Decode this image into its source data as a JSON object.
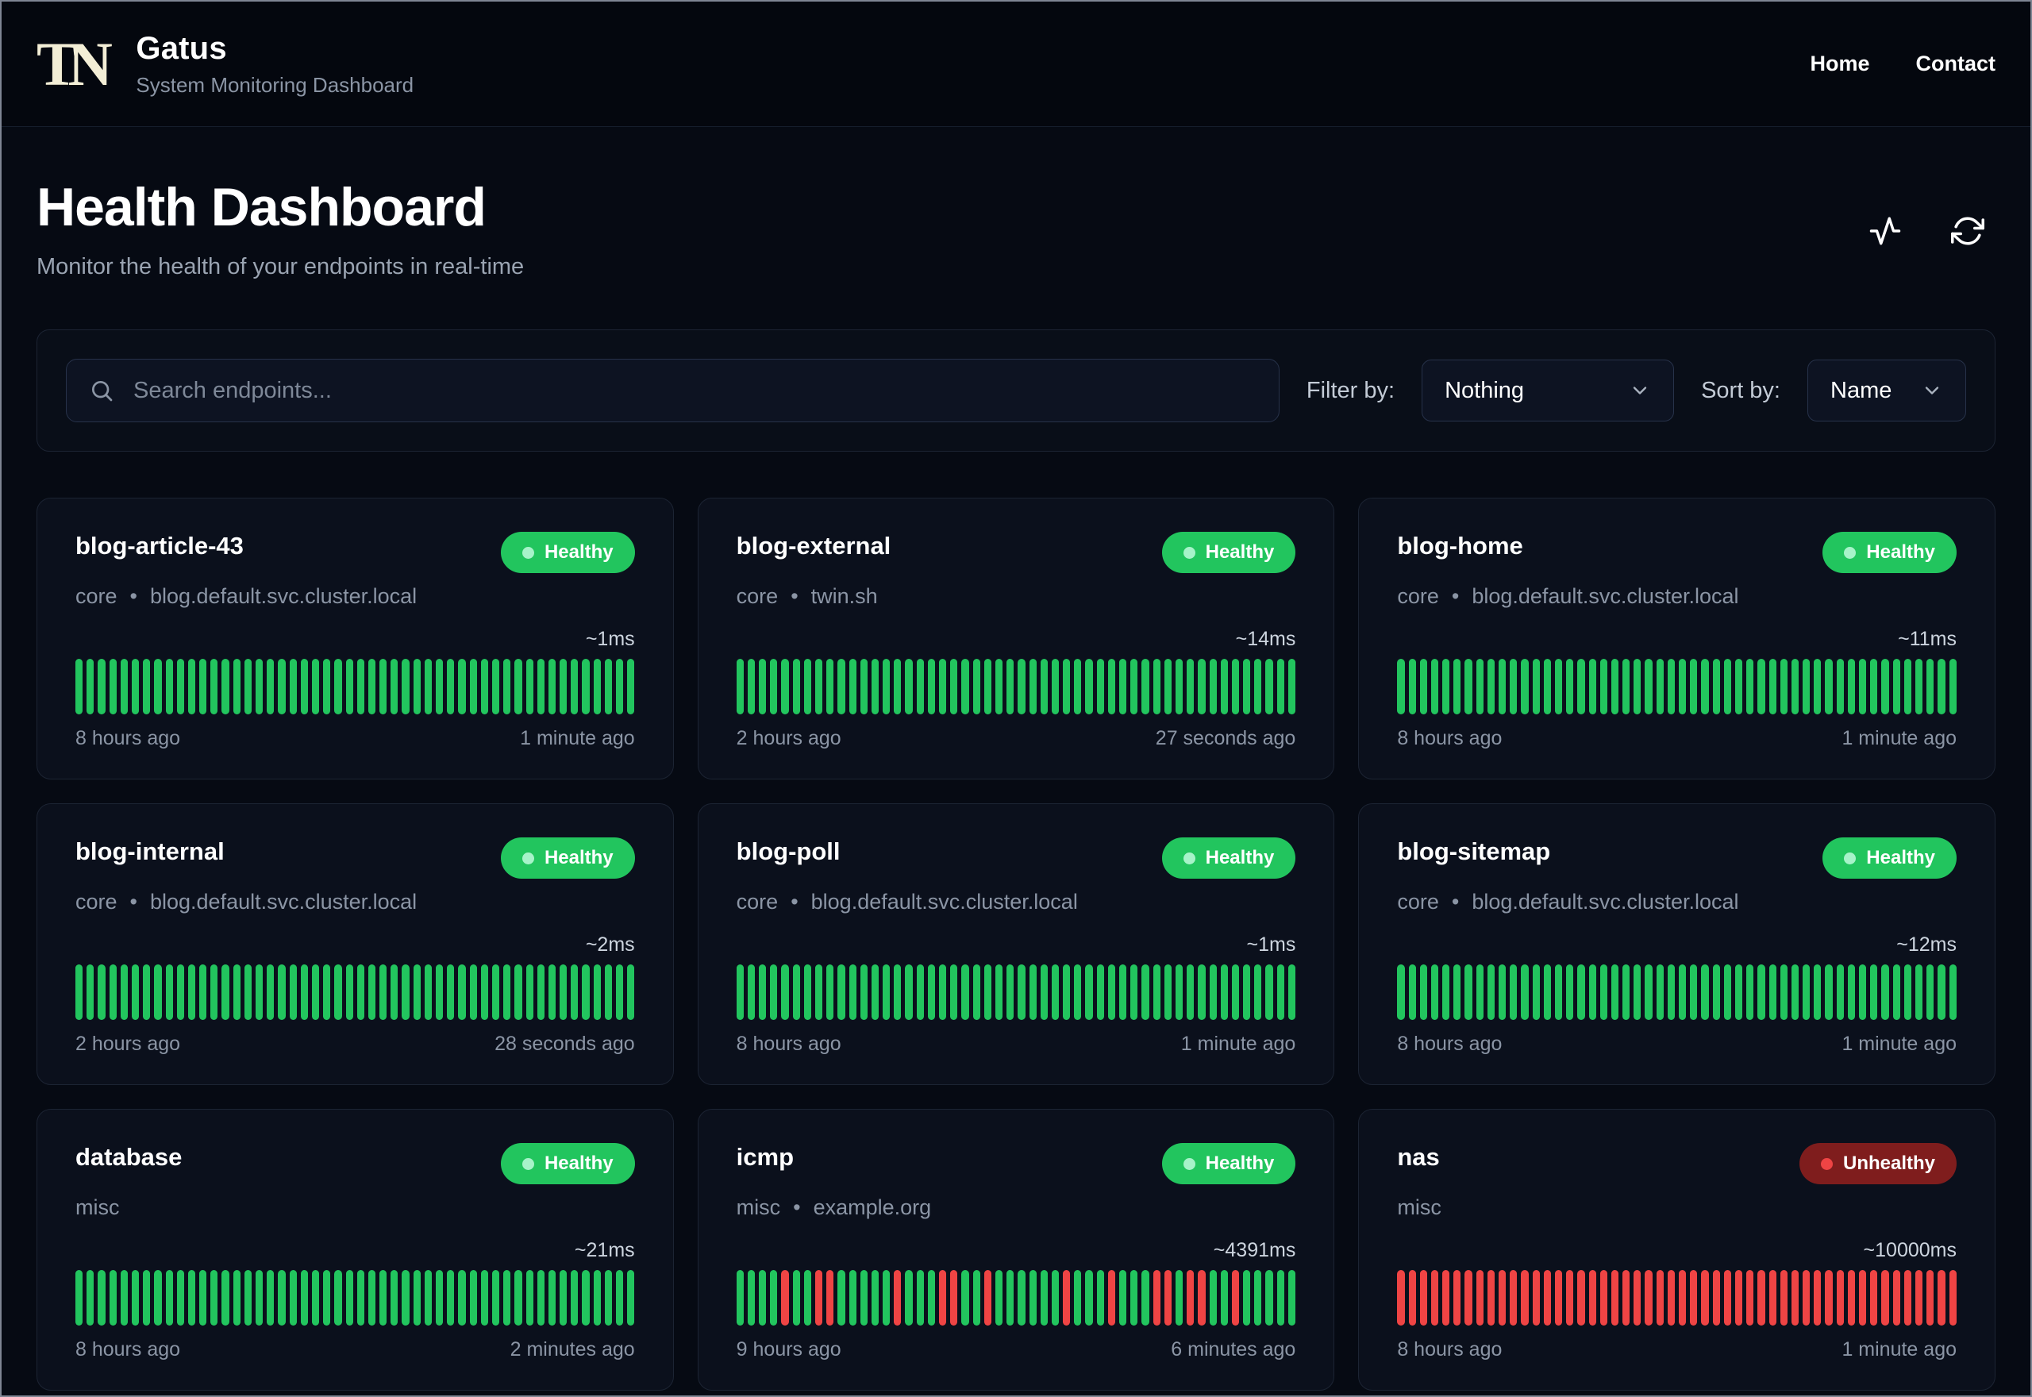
{
  "header": {
    "logo_text": "TN",
    "app_name": "Gatus",
    "app_subtitle": "System Monitoring Dashboard",
    "nav": [
      {
        "label": "Home"
      },
      {
        "label": "Contact"
      }
    ]
  },
  "hero": {
    "title": "Health Dashboard",
    "subtitle": "Monitor the health of your endpoints in real-time"
  },
  "toolbar": {
    "search_placeholder": "Search endpoints...",
    "search_value": "",
    "filter_label": "Filter by:",
    "filter_value": "Nothing",
    "sort_label": "Sort by:",
    "sort_value": "Name"
  },
  "ui": {
    "meta_separator": "•"
  },
  "colors": {
    "healthy_badge_bg": "#22c55e",
    "healthy_dot": "#a7f3c9",
    "unhealthy_badge_bg": "#7f1d1d",
    "unhealthy_dot": "#ef4444",
    "bar_success": "#22c55e",
    "bar_failure": "#ef4444"
  },
  "cards": [
    {
      "name": "blog-article-43",
      "group": "core",
      "host": "blog.default.svc.cluster.local",
      "status": "Healthy",
      "latency": "~1ms",
      "oldest": "8 hours ago",
      "newest": "1 minute ago",
      "bars": "GGGGGGGGGGGGGGGGGGGGGGGGGGGGGGGGGGGGGGGGGGGGGGGGGG"
    },
    {
      "name": "blog-external",
      "group": "core",
      "host": "twin.sh",
      "status": "Healthy",
      "latency": "~14ms",
      "oldest": "2 hours ago",
      "newest": "27 seconds ago",
      "bars": "GGGGGGGGGGGGGGGGGGGGGGGGGGGGGGGGGGGGGGGGGGGGGGGGGG"
    },
    {
      "name": "blog-home",
      "group": "core",
      "host": "blog.default.svc.cluster.local",
      "status": "Healthy",
      "latency": "~11ms",
      "oldest": "8 hours ago",
      "newest": "1 minute ago",
      "bars": "GGGGGGGGGGGGGGGGGGGGGGGGGGGGGGGGGGGGGGGGGGGGGGGGGG"
    },
    {
      "name": "blog-internal",
      "group": "core",
      "host": "blog.default.svc.cluster.local",
      "status": "Healthy",
      "latency": "~2ms",
      "oldest": "2 hours ago",
      "newest": "28 seconds ago",
      "bars": "GGGGGGGGGGGGGGGGGGGGGGGGGGGGGGGGGGGGGGGGGGGGGGGGGG"
    },
    {
      "name": "blog-poll",
      "group": "core",
      "host": "blog.default.svc.cluster.local",
      "status": "Healthy",
      "latency": "~1ms",
      "oldest": "8 hours ago",
      "newest": "1 minute ago",
      "bars": "GGGGGGGGGGGGGGGGGGGGGGGGGGGGGGGGGGGGGGGGGGGGGGGGGG"
    },
    {
      "name": "blog-sitemap",
      "group": "core",
      "host": "blog.default.svc.cluster.local",
      "status": "Healthy",
      "latency": "~12ms",
      "oldest": "8 hours ago",
      "newest": "1 minute ago",
      "bars": "GGGGGGGGGGGGGGGGGGGGGGGGGGGGGGGGGGGGGGGGGGGGGGGGGG"
    },
    {
      "name": "database",
      "group": "misc",
      "host": "",
      "status": "Healthy",
      "latency": "~21ms",
      "oldest": "8 hours ago",
      "newest": "2 minutes ago",
      "bars": "GGGGGGGGGGGGGGGGGGGGGGGGGGGGGGGGGGGGGGGGGGGGGGGGGG"
    },
    {
      "name": "icmp",
      "group": "misc",
      "host": "example.org",
      "status": "Healthy",
      "latency": "~4391ms",
      "oldest": "9 hours ago",
      "newest": "6 minutes ago",
      "bars": "GGGGRGGRRGGGGGRGGGRRGGRGGGGGGRGGGRGGGRRGRRGGRGGGGG"
    },
    {
      "name": "nas",
      "group": "misc",
      "host": "",
      "status": "Unhealthy",
      "latency": "~10000ms",
      "oldest": "8 hours ago",
      "newest": "1 minute ago",
      "bars": "RRRRRRRRRRRRRRRRRRRRRRRRRRRRRRRRRRRRRRRRRRRRRRRRRR"
    }
  ]
}
